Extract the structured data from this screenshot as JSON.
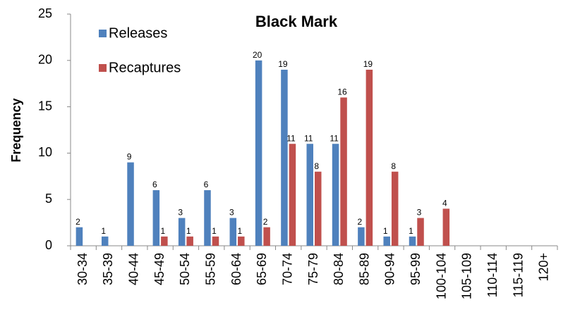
{
  "chart_data": {
    "type": "bar",
    "title": "Black Mark",
    "y_label": "Frequency",
    "categories": [
      "30-34",
      "35-39",
      "40-44",
      "45-49",
      "50-54",
      "55-59",
      "60-64",
      "65-69",
      "70-74",
      "75-79",
      "80-84",
      "85-89",
      "90-94",
      "95-99",
      "100-104",
      "105-109",
      "110-114",
      "115-119",
      "120+"
    ],
    "series": [
      {
        "name": "Releases",
        "color": "#4f81bd",
        "values": [
          2,
          1,
          9,
          6,
          3,
          6,
          3,
          20,
          19,
          11,
          11,
          2,
          1,
          1,
          null,
          null,
          null,
          null,
          null
        ]
      },
      {
        "name": "Recaptures",
        "color": "#c0504d",
        "values": [
          null,
          null,
          null,
          1,
          1,
          1,
          1,
          2,
          11,
          8,
          16,
          19,
          8,
          3,
          4,
          null,
          null,
          null,
          null
        ]
      }
    ],
    "ylim": [
      0,
      25
    ],
    "yticks": [
      0,
      5,
      10,
      15,
      20,
      25
    ],
    "legend": "top-left",
    "grid": false
  }
}
